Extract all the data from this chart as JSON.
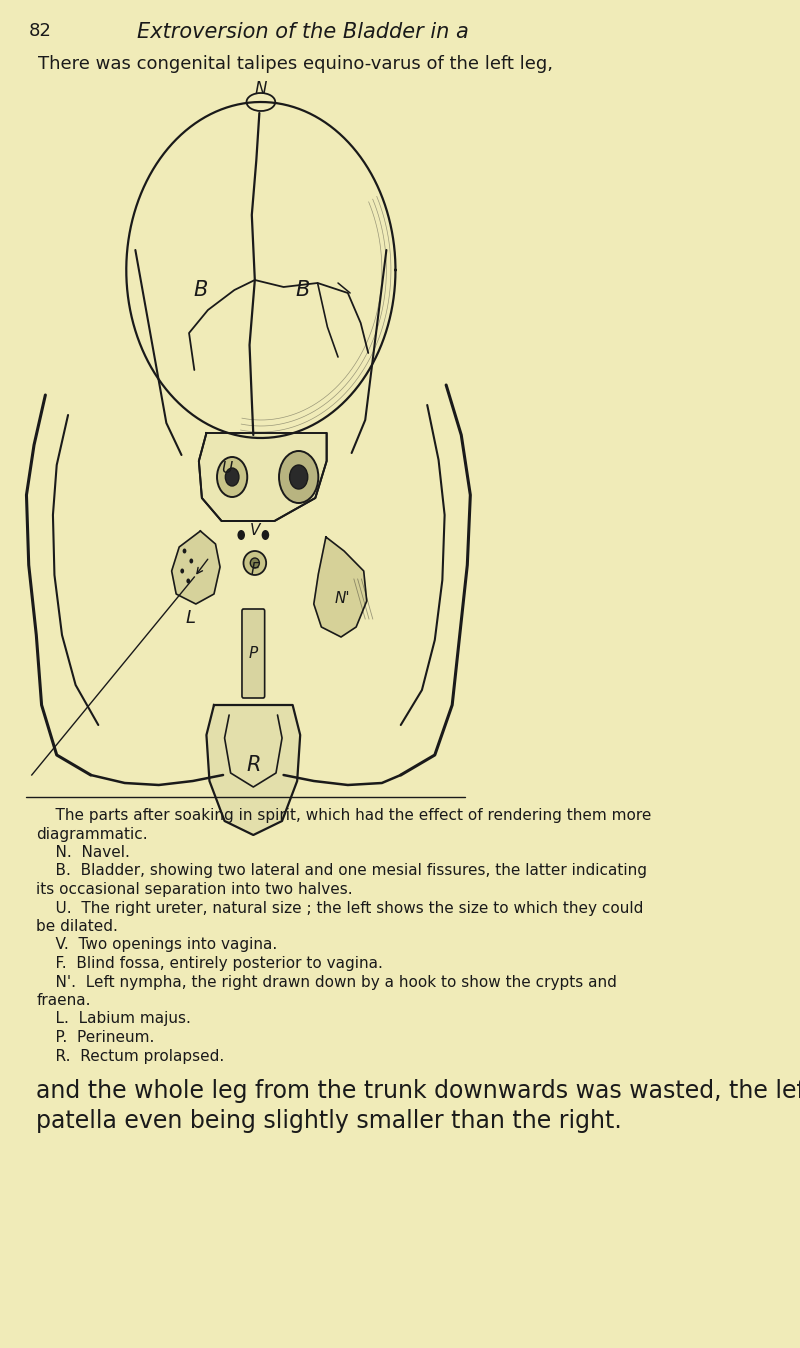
{
  "bg_color": "#f0ebb8",
  "page_number": "82",
  "header_title": "Extroversion of the Bladder in a",
  "top_text": "There was congenital talipes equino-varus of the left leg,",
  "body_text_lines": [
    "    The parts after soaking in spirit, which had the effect of rendering them more",
    "diagrammatic.",
    "    N.  Navel.",
    "    B.  Bladder, showing two lateral and one mesial fissures, the latter indicating",
    "its occasional separation into two halves.",
    "    U.  The right ureter, natural size ; the left shows the size to which they could",
    "be dilated.",
    "    V.  Two openings into vagina.",
    "    F.  Blind fossa, entirely posterior to vagina.",
    "    N'.  Left nympha, the right drawn down by a hook to show the crypts and",
    "fraena.",
    "    L.  Labium majus.",
    "    P.  Perineum.",
    "    R.  Rectum prolapsed."
  ],
  "footer_text_line1": "and the whole leg from the trunk downwards was wasted, the left",
  "footer_text_line2": "patella even being slightly smaller than the right.",
  "ink_color": "#1a1a1a",
  "text_color": "#1a1a1a"
}
